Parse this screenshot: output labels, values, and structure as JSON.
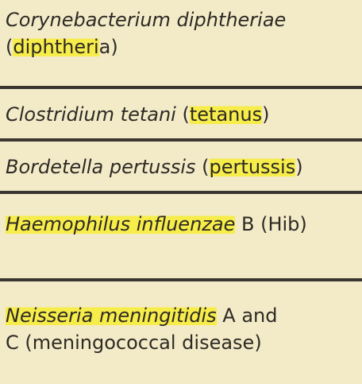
{
  "entries": [
    {
      "line1": {
        "italic": "Corynebacterium diphtheriae"
      },
      "line2": {
        "open": "(",
        "highlighted": "diphtheri",
        "rest": "a)"
      }
    },
    {
      "italic": "Clostridium tetani",
      "space": " ",
      "paren_open": "(",
      "highlighted": "tetanus",
      "paren_close": ")"
    },
    {
      "italic": "Bordetella pertussis",
      "space": " ",
      "paren_open": "(",
      "highlighted": "pertussis",
      "paren_close": ")"
    },
    {
      "italic_highlighted": "Haemophilus influenzae",
      "rest": " B (Hib)"
    },
    {
      "line1": {
        "italic_highlighted": "Neisseria meningitidis",
        "rest": " A and"
      },
      "line2": {
        "text": "C (meningococcal disease)"
      }
    }
  ],
  "colors": {
    "background": "#f3ebc8",
    "highlight": "#f6ec4a",
    "rule": "#3a3530",
    "text": "#2e2a25"
  }
}
